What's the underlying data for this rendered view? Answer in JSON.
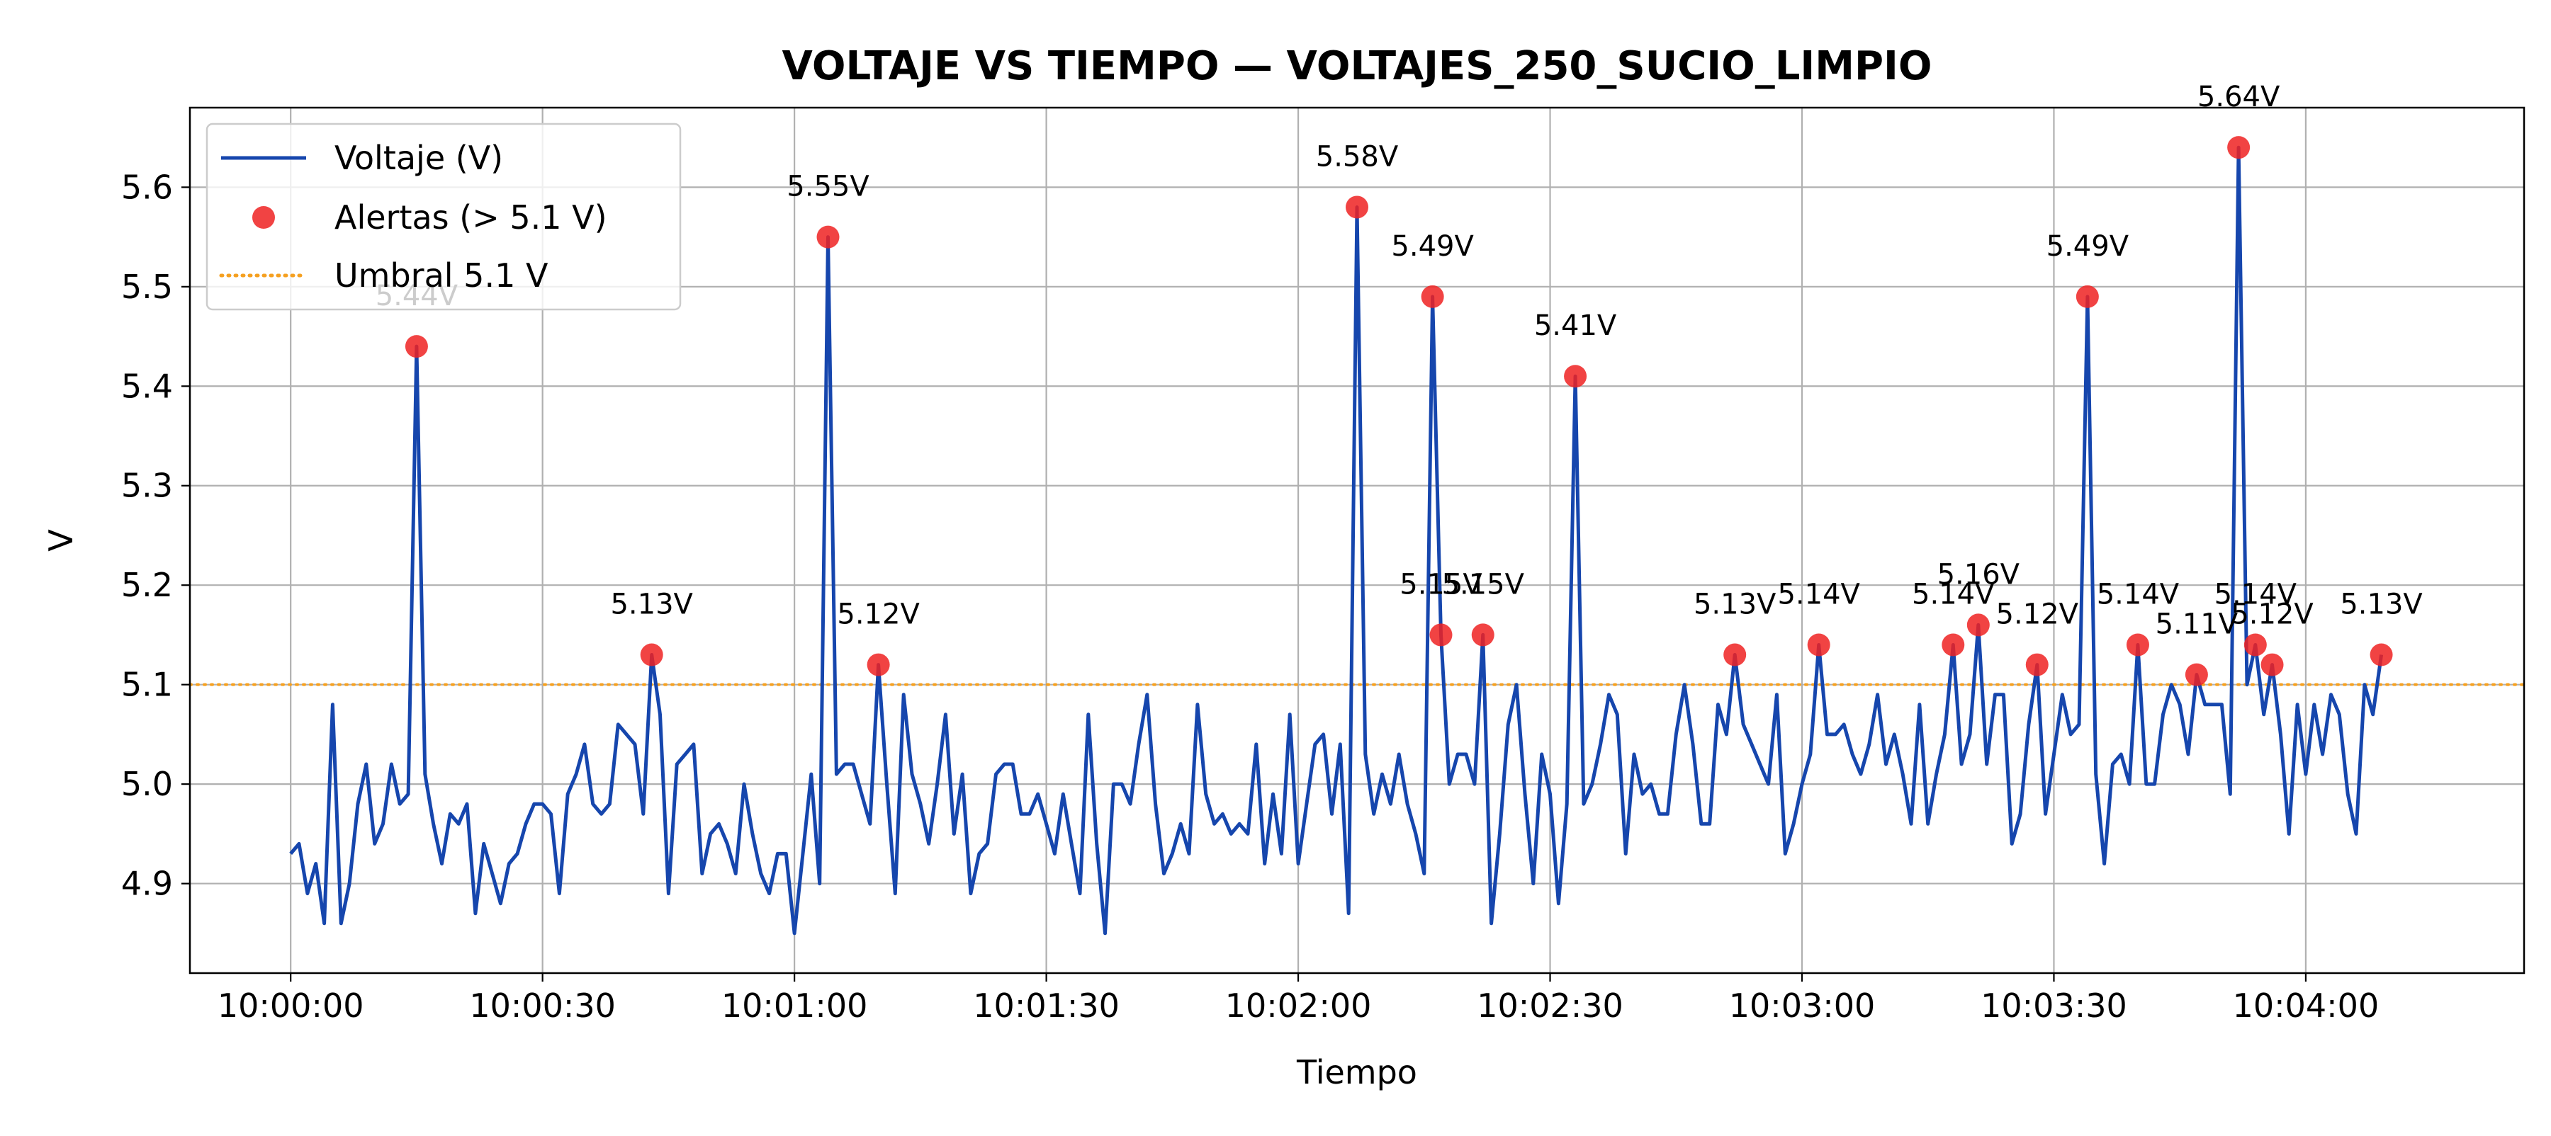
{
  "chart_data": {
    "type": "line",
    "title": "VOLTAJE VS TIEMPO — VOLTAJES_250_SUCIO_LIMPIO",
    "xlabel": "Tiempo",
    "ylabel": "V",
    "x_tick_labels": [
      "10:00:00",
      "10:00:30",
      "10:01:00",
      "10:01:30",
      "10:02:00",
      "10:02:30",
      "10:03:00",
      "10:03:30",
      "10:04:00"
    ],
    "y_tick_labels": [
      "4.9",
      "5.0",
      "5.1",
      "5.2",
      "5.3",
      "5.4",
      "5.5",
      "5.6"
    ],
    "x_range": [
      "09:59:48",
      "10:04:26"
    ],
    "ylim": [
      4.81,
      5.68
    ],
    "grid": true,
    "legend_position": "top-left",
    "threshold": 5.1,
    "colors": {
      "line": "#1646ad",
      "alert": "#ee2222",
      "threshold": "#f5a020",
      "grid": "#b0b0b0"
    },
    "legend": [
      {
        "label": "Voltaje (V)",
        "marker": "line"
      },
      {
        "label": "Alertas (> 5.1 V)",
        "marker": "dot"
      },
      {
        "label": "Umbral 5.1 V",
        "marker": "dotted-line"
      }
    ],
    "series": [
      {
        "name": "Voltaje (V)",
        "x_start": "10:00:00",
        "x_step_seconds": 1,
        "values": [
          4.93,
          4.94,
          4.89,
          4.92,
          4.86,
          5.08,
          4.86,
          4.9,
          4.98,
          5.02,
          4.94,
          4.96,
          5.02,
          4.98,
          4.99,
          5.44,
          5.01,
          4.96,
          4.92,
          4.97,
          4.96,
          4.98,
          4.87,
          4.94,
          4.91,
          4.88,
          4.92,
          4.93,
          4.96,
          4.98,
          4.98,
          4.97,
          4.89,
          4.99,
          5.01,
          5.04,
          4.98,
          4.97,
          4.98,
          5.06,
          5.05,
          5.04,
          4.97,
          5.13,
          5.07,
          4.89,
          5.02,
          5.03,
          5.04,
          4.91,
          4.95,
          4.96,
          4.94,
          4.91,
          5.0,
          4.95,
          4.91,
          4.89,
          4.93,
          4.93,
          4.85,
          4.93,
          5.01,
          4.9,
          5.55,
          5.01,
          5.02,
          5.02,
          4.99,
          4.96,
          5.12,
          5.0,
          4.89,
          5.09,
          5.01,
          4.98,
          4.94,
          5.0,
          5.07,
          4.95,
          5.01,
          4.89,
          4.93,
          4.94,
          5.01,
          5.02,
          5.02,
          4.97,
          4.97,
          4.99,
          4.96,
          4.93,
          4.99,
          4.94,
          4.89,
          5.07,
          4.94,
          4.85,
          5.0,
          5.0,
          4.98,
          5.04,
          5.09,
          4.98,
          4.91,
          4.93,
          4.96,
          4.93,
          5.08,
          4.99,
          4.96,
          4.97,
          4.95,
          4.96,
          4.95,
          5.04,
          4.92,
          4.99,
          4.93,
          5.07,
          4.92,
          4.98,
          5.04,
          5.05,
          4.97,
          5.04,
          4.87,
          5.58,
          5.03,
          4.97,
          5.01,
          4.98,
          5.03,
          4.98,
          4.95,
          4.91,
          5.49,
          5.15,
          5.0,
          5.03,
          5.03,
          5.0,
          5.15,
          4.86,
          4.95,
          5.06,
          5.1,
          4.99,
          4.9,
          5.03,
          4.99,
          4.88,
          4.98,
          5.41,
          4.98,
          5.0,
          5.04,
          5.09,
          5.07,
          4.93,
          5.03,
          4.99,
          5.0,
          4.97,
          4.97,
          5.05,
          5.1,
          5.04,
          4.96,
          4.96,
          5.08,
          5.05,
          5.13,
          5.06,
          5.04,
          5.02,
          5.0,
          5.09,
          4.93,
          4.96,
          5.0,
          5.03,
          5.14,
          5.05,
          5.05,
          5.06,
          5.03,
          5.01,
          5.04,
          5.09,
          5.02,
          5.05,
          5.01,
          4.96,
          5.08,
          4.96,
          5.01,
          5.05,
          5.14,
          5.02,
          5.05,
          5.16,
          5.02,
          5.09,
          5.09,
          4.94,
          4.97,
          5.06,
          5.12,
          4.97,
          5.03,
          5.09,
          5.05,
          5.06,
          5.49,
          5.01,
          4.92,
          5.02,
          5.03,
          5.0,
          5.14,
          5.0,
          5.0,
          5.07,
          5.1,
          5.08,
          5.03,
          5.11,
          5.08,
          5.08,
          5.08,
          4.99,
          5.64,
          5.1,
          5.14,
          5.07,
          5.12,
          5.05,
          4.95,
          5.08,
          5.01,
          5.08,
          5.03,
          5.09,
          5.07,
          4.99,
          4.95,
          5.1,
          5.07,
          5.13
        ]
      }
    ],
    "alerts": [
      {
        "x": "10:00:15",
        "y": 5.44,
        "label": "5.44V"
      },
      {
        "x": "10:00:43",
        "y": 5.13,
        "label": "5.13V"
      },
      {
        "x": "10:01:04",
        "y": 5.55,
        "label": "5.55V"
      },
      {
        "x": "10:01:10",
        "y": 5.12,
        "label": "5.12V"
      },
      {
        "x": "10:02:07",
        "y": 5.58,
        "label": "5.58V"
      },
      {
        "x": "10:02:16",
        "y": 5.49,
        "label": "5.49V"
      },
      {
        "x": "10:02:17",
        "y": 5.15,
        "label": "5.15V"
      },
      {
        "x": "10:02:22",
        "y": 5.15,
        "label": "5.15V"
      },
      {
        "x": "10:02:33",
        "y": 5.41,
        "label": "5.41V"
      },
      {
        "x": "10:02:52",
        "y": 5.13,
        "label": "5.13V"
      },
      {
        "x": "10:03:02",
        "y": 5.14,
        "label": "5.14V"
      },
      {
        "x": "10:03:18",
        "y": 5.14,
        "label": "5.14V"
      },
      {
        "x": "10:03:21",
        "y": 5.16,
        "label": "5.16V"
      },
      {
        "x": "10:03:28",
        "y": 5.12,
        "label": "5.12V"
      },
      {
        "x": "10:03:34",
        "y": 5.49,
        "label": "5.49V"
      },
      {
        "x": "10:03:40",
        "y": 5.14,
        "label": "5.14V"
      },
      {
        "x": "10:03:47",
        "y": 5.11,
        "label": "5.11V"
      },
      {
        "x": "10:03:52",
        "y": 5.64,
        "label": "5.64V"
      },
      {
        "x": "10:03:54",
        "y": 5.14,
        "label": "5.14V"
      },
      {
        "x": "10:03:56",
        "y": 5.12,
        "label": "5.12V"
      },
      {
        "x": "10:04:09",
        "y": 5.13,
        "label": "5.13V"
      }
    ]
  }
}
